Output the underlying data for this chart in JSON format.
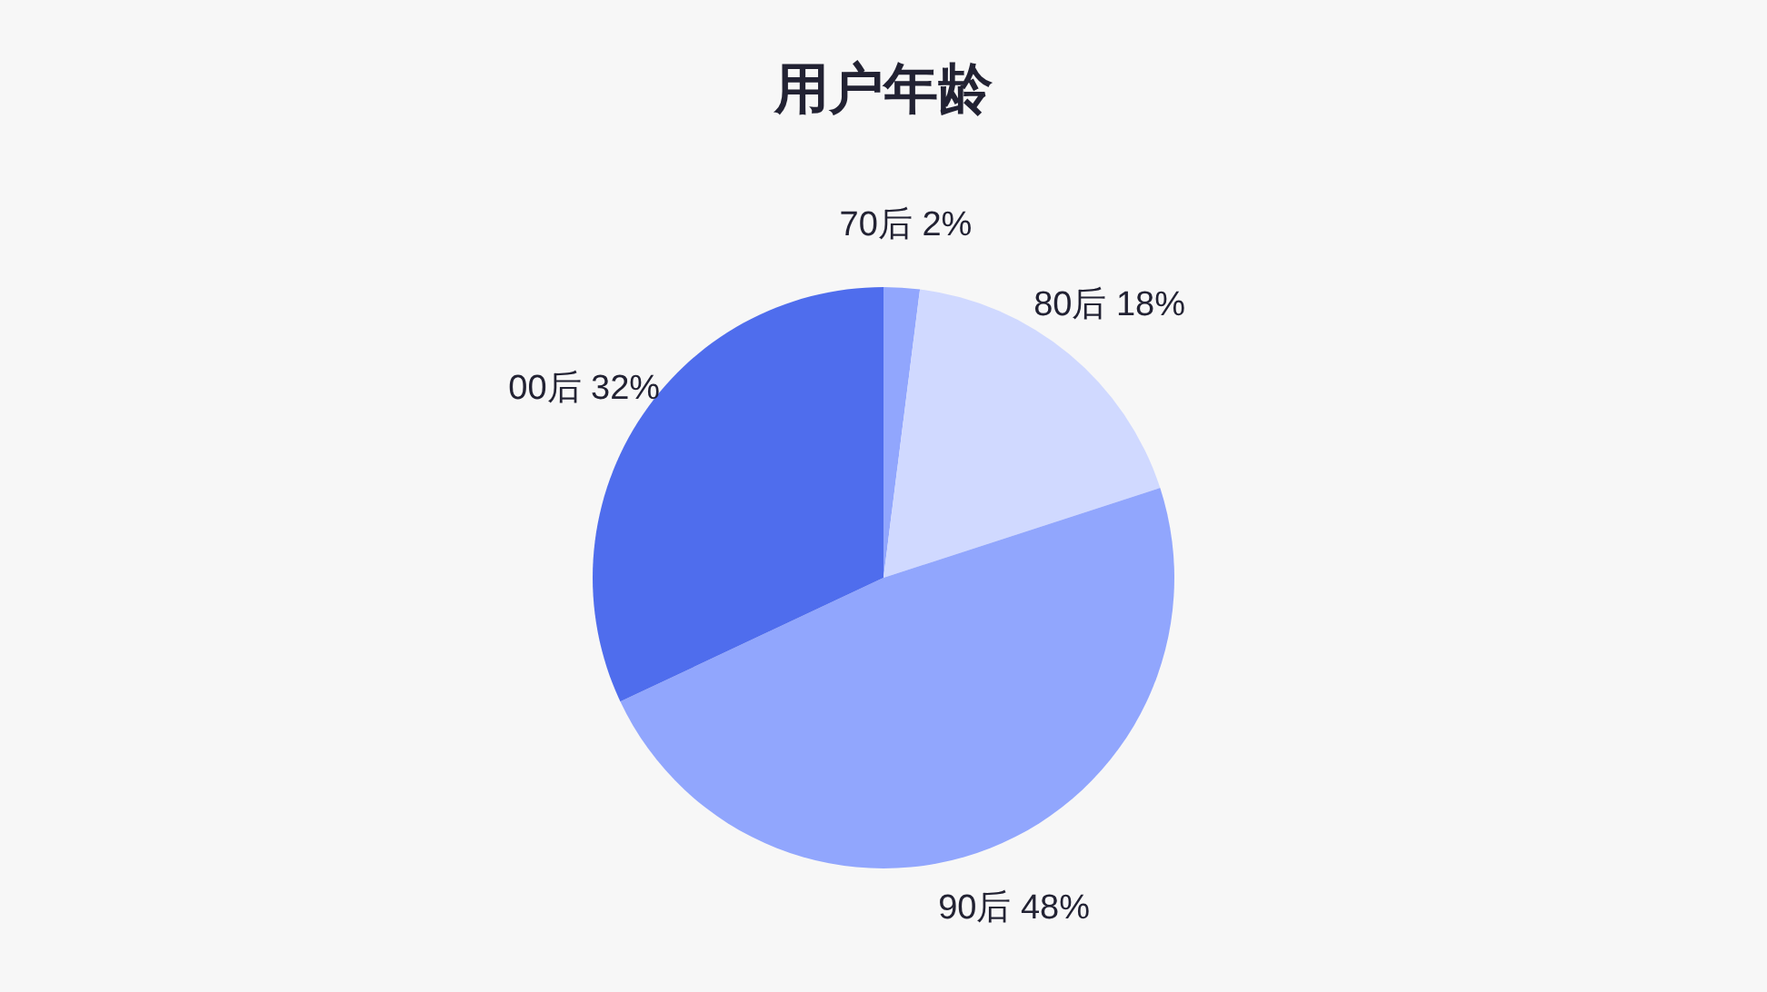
{
  "chart_data": {
    "type": "pie",
    "title": "用户年龄",
    "categories": [
      "70后",
      "80后",
      "90后",
      "00后"
    ],
    "values": [
      2,
      18,
      48,
      32
    ],
    "value_labels": [
      "2%",
      "18%",
      "48%",
      "32%"
    ],
    "colors": [
      "#91a6fd",
      "#d0d9ff",
      "#91a6fd",
      "#4f6ded"
    ]
  }
}
